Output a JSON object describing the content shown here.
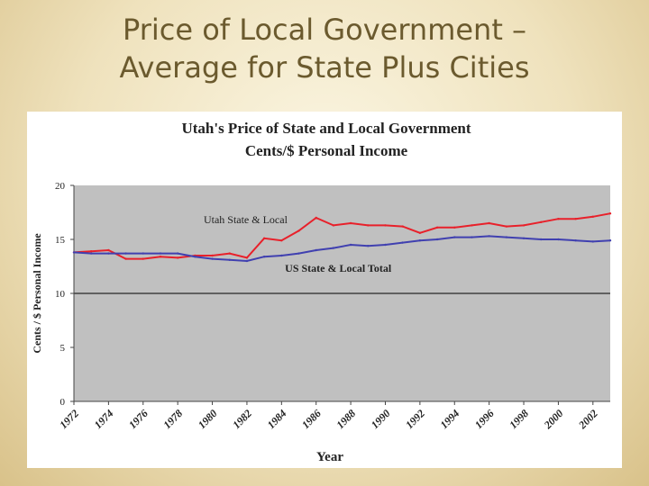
{
  "slide": {
    "title_line1": "Price of Local Government –",
    "title_line2": "Average for State Plus Cities"
  },
  "chart_data": {
    "type": "line",
    "title": "Utah's Price of State and Local Government",
    "subtitle": "Cents/$ Personal Income",
    "xlabel": "Year",
    "ylabel": "Cents / $ Personal Income",
    "ylim": [
      0,
      20
    ],
    "yticks": [
      0,
      5,
      10,
      15,
      20
    ],
    "xlim": [
      1972,
      2003
    ],
    "xticks": [
      "1972",
      "1974",
      "1976",
      "1978",
      "1980",
      "1982",
      "1984",
      "1986",
      "1988",
      "1990",
      "1992",
      "1994",
      "1996",
      "1998",
      "2000",
      "2002"
    ],
    "background": "#c0c0c0",
    "reference_line": 10,
    "x": [
      1972,
      1973,
      1974,
      1975,
      1976,
      1977,
      1978,
      1979,
      1980,
      1981,
      1982,
      1983,
      1984,
      1985,
      1986,
      1987,
      1988,
      1989,
      1990,
      1991,
      1992,
      1993,
      1994,
      1995,
      1996,
      1997,
      1998,
      1999,
      2000,
      2001,
      2002,
      2003
    ],
    "series": [
      {
        "name": "Utah State & Local",
        "color": "#e8202a",
        "label_pos": "upper-left",
        "values": [
          13.8,
          13.9,
          14.0,
          13.2,
          13.2,
          13.4,
          13.3,
          13.5,
          13.5,
          13.7,
          13.3,
          15.1,
          14.9,
          15.8,
          17.0,
          16.3,
          16.5,
          16.3,
          16.3,
          16.2,
          15.6,
          16.1,
          16.1,
          16.3,
          16.5,
          16.2,
          16.3,
          16.6,
          16.9,
          16.9,
          17.1,
          17.4
        ]
      },
      {
        "name": "US State & Local Total",
        "color": "#4040b0",
        "label_pos": "lower-center",
        "values": [
          13.8,
          13.7,
          13.7,
          13.7,
          13.7,
          13.7,
          13.7,
          13.4,
          13.2,
          13.1,
          13.0,
          13.4,
          13.5,
          13.7,
          14.0,
          14.2,
          14.5,
          14.4,
          14.5,
          14.7,
          14.9,
          15.0,
          15.2,
          15.2,
          15.3,
          15.2,
          15.1,
          15.0,
          15.0,
          14.9,
          14.8,
          14.9
        ]
      }
    ]
  }
}
